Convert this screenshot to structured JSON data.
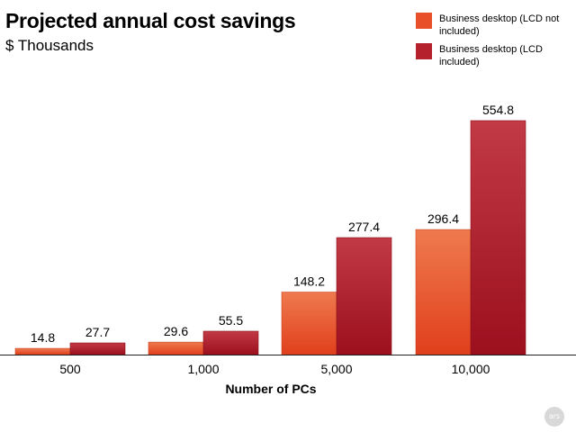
{
  "chart_data": {
    "type": "bar",
    "title": "Projected annual cost savings",
    "subtitle": "$ Thousands",
    "xlabel": "Number of PCs",
    "ylabel": "",
    "categories": [
      "500",
      "1,000",
      "5,000",
      "10,000"
    ],
    "series": [
      {
        "name": "Business desktop (LCD not included)",
        "values": [
          14.8,
          29.6,
          148.2,
          296.4
        ],
        "color": "#e8502a",
        "display": [
          "14.8",
          "29.6",
          "148.2",
          "296.4"
        ]
      },
      {
        "name": "Business desktop (LCD included)",
        "values": [
          27.7,
          55.5,
          277.4,
          554.8
        ],
        "color": "#b5222d",
        "display": [
          "27.7",
          "55.5",
          "277.4",
          "554.8"
        ]
      }
    ],
    "ylim": [
      0,
      554.8
    ],
    "grid": false,
    "legend_position": "top-right"
  },
  "watermark": "ars"
}
